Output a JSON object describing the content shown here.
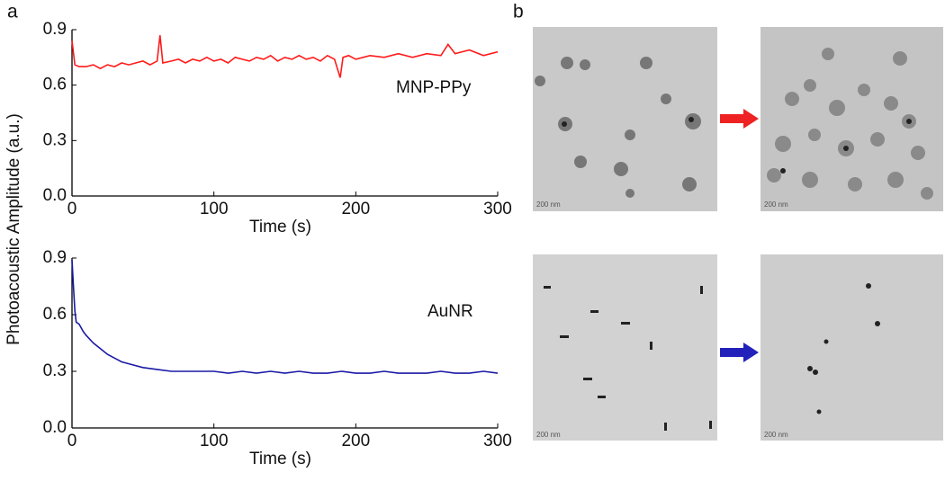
{
  "panel_labels": [
    "a",
    "b"
  ],
  "y_label": "Photoacoustic Amplitude (a.u.)",
  "scale_bar": "200 nm",
  "chart_data": [
    {
      "type": "line",
      "annotation": "MNP-PPy",
      "x_label": "Time (s)",
      "xlim": [
        0,
        300
      ],
      "ylim": [
        0,
        0.9
      ],
      "xticks": [
        0,
        100,
        200,
        300
      ],
      "yticks": [
        {
          "value": 0,
          "label": "0.0"
        },
        0.3,
        0.6,
        0.9
      ],
      "series": [
        {
          "color": "#ff1a1a",
          "x": [
            0,
            2,
            5,
            10,
            15,
            20,
            25,
            30,
            35,
            40,
            45,
            50,
            55,
            60,
            62,
            64,
            70,
            75,
            80,
            85,
            90,
            95,
            100,
            105,
            110,
            115,
            120,
            125,
            130,
            135,
            140,
            145,
            150,
            155,
            160,
            165,
            170,
            175,
            180,
            185,
            189,
            191,
            195,
            200,
            210,
            220,
            230,
            240,
            250,
            260,
            265,
            270,
            280,
            290,
            300
          ],
          "values": [
            0.84,
            0.71,
            0.7,
            0.7,
            0.71,
            0.69,
            0.71,
            0.7,
            0.72,
            0.71,
            0.72,
            0.73,
            0.71,
            0.73,
            0.87,
            0.72,
            0.73,
            0.74,
            0.72,
            0.74,
            0.73,
            0.75,
            0.73,
            0.74,
            0.72,
            0.75,
            0.74,
            0.73,
            0.75,
            0.74,
            0.76,
            0.73,
            0.75,
            0.74,
            0.76,
            0.74,
            0.75,
            0.73,
            0.76,
            0.74,
            0.64,
            0.75,
            0.76,
            0.74,
            0.76,
            0.75,
            0.77,
            0.75,
            0.77,
            0.76,
            0.82,
            0.77,
            0.79,
            0.76,
            0.78
          ]
        }
      ]
    },
    {
      "type": "line",
      "annotation": "AuNR",
      "x_label": "Time (s)",
      "xlim": [
        0,
        300
      ],
      "ylim": [
        0,
        0.9
      ],
      "xticks": [
        0,
        100,
        200,
        300
      ],
      "yticks": [
        {
          "value": 0,
          "label": "0.0"
        },
        0.3,
        0.6,
        0.9
      ],
      "series": [
        {
          "color": "#1a1aa6",
          "x": [
            0,
            1,
            2,
            3,
            5,
            8,
            10,
            15,
            20,
            25,
            30,
            35,
            40,
            50,
            60,
            70,
            80,
            90,
            100,
            110,
            120,
            130,
            140,
            150,
            160,
            170,
            180,
            190,
            200,
            210,
            220,
            230,
            240,
            250,
            260,
            270,
            280,
            290,
            300
          ],
          "values": [
            0.89,
            0.75,
            0.62,
            0.56,
            0.55,
            0.51,
            0.49,
            0.45,
            0.42,
            0.39,
            0.37,
            0.35,
            0.34,
            0.32,
            0.31,
            0.3,
            0.3,
            0.3,
            0.3,
            0.29,
            0.3,
            0.29,
            0.3,
            0.29,
            0.3,
            0.29,
            0.29,
            0.3,
            0.29,
            0.29,
            0.3,
            0.29,
            0.29,
            0.29,
            0.3,
            0.29,
            0.29,
            0.3,
            0.29
          ]
        }
      ]
    }
  ]
}
